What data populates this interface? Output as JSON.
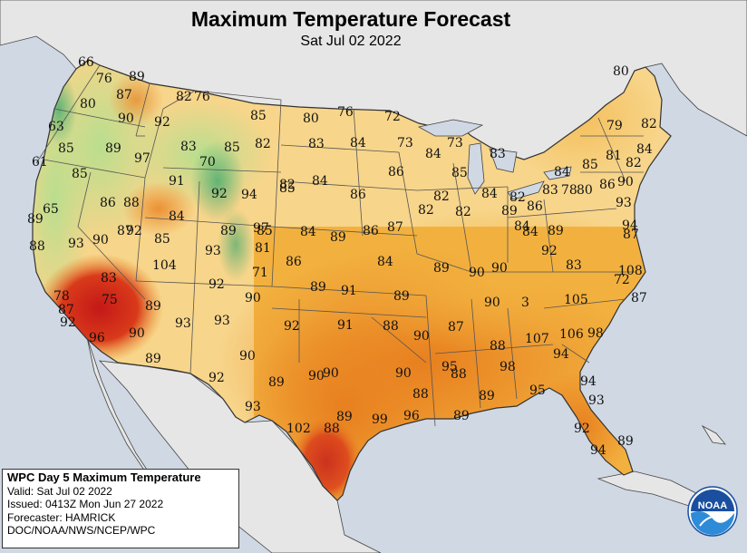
{
  "title": "Maximum Temperature Forecast",
  "subtitle": "Sat Jul 02 2022",
  "info_box": {
    "heading": "WPC Day 5 Maximum Temperature",
    "valid": "Valid: Sat Jul 02 2022",
    "issued": "Issued: 0413Z Mon Jun 27 2022",
    "forecaster": "Forecaster: HAMRICK",
    "agencies": "DOC/NOAA/NWS/NCEP/WPC"
  },
  "logo_text": "NOAA",
  "colors": {
    "ocean": "#cfd8e3",
    "land_outside": "#e6e6e6",
    "temp_60s": "#2ea36a",
    "temp_70s": "#b9de8e",
    "temp_80s": "#f7d58a",
    "temp_85_90": "#f2b13f",
    "temp_90s": "#e8801f",
    "temp_100s": "#c41818"
  },
  "temperatures": [
    {
      "value": "66"
    },
    {
      "value": "76"
    },
    {
      "value": "89"
    },
    {
      "value": "80"
    },
    {
      "value": "87"
    },
    {
      "value": "82"
    },
    {
      "value": "76"
    },
    {
      "value": "63"
    },
    {
      "value": "90"
    },
    {
      "value": "92"
    },
    {
      "value": "85"
    },
    {
      "value": "80"
    },
    {
      "value": "76"
    },
    {
      "value": "72"
    },
    {
      "value": "85"
    },
    {
      "value": "89"
    },
    {
      "value": "83"
    },
    {
      "value": "85"
    },
    {
      "value": "82"
    },
    {
      "value": "83"
    },
    {
      "value": "84"
    },
    {
      "value": "73"
    },
    {
      "value": "73"
    },
    {
      "value": "61"
    },
    {
      "value": "97"
    },
    {
      "value": "70"
    },
    {
      "value": "85"
    },
    {
      "value": "91"
    },
    {
      "value": "82"
    },
    {
      "value": "84"
    },
    {
      "value": "86"
    },
    {
      "value": "84"
    },
    {
      "value": "83"
    },
    {
      "value": "80"
    },
    {
      "value": "79"
    },
    {
      "value": "82"
    },
    {
      "value": "85"
    },
    {
      "value": "86"
    },
    {
      "value": "88"
    },
    {
      "value": "92"
    },
    {
      "value": "94"
    },
    {
      "value": "85"
    },
    {
      "value": "86"
    },
    {
      "value": "82"
    },
    {
      "value": "84"
    },
    {
      "value": "82"
    },
    {
      "value": "84"
    },
    {
      "value": "85"
    },
    {
      "value": "81"
    },
    {
      "value": "82"
    },
    {
      "value": "84"
    },
    {
      "value": "89"
    },
    {
      "value": "65"
    },
    {
      "value": "84"
    },
    {
      "value": "97"
    },
    {
      "value": "82"
    },
    {
      "value": "82"
    },
    {
      "value": "89"
    },
    {
      "value": "84"
    },
    {
      "value": "86"
    },
    {
      "value": "83"
    },
    {
      "value": "78"
    },
    {
      "value": "80"
    },
    {
      "value": "86"
    },
    {
      "value": "90"
    },
    {
      "value": "93"
    },
    {
      "value": "94"
    },
    {
      "value": "87"
    },
    {
      "value": "92"
    },
    {
      "value": "85"
    },
    {
      "value": "89"
    },
    {
      "value": "85"
    },
    {
      "value": "84"
    },
    {
      "value": "89"
    },
    {
      "value": "86"
    },
    {
      "value": "87"
    },
    {
      "value": "84"
    },
    {
      "value": "89"
    },
    {
      "value": "87"
    },
    {
      "value": "88"
    },
    {
      "value": "93"
    },
    {
      "value": "90"
    },
    {
      "value": "93"
    },
    {
      "value": "81"
    },
    {
      "value": "86"
    },
    {
      "value": "84"
    },
    {
      "value": "89"
    },
    {
      "value": "90"
    },
    {
      "value": "90"
    },
    {
      "value": "92"
    },
    {
      "value": "83"
    },
    {
      "value": "104"
    },
    {
      "value": "83"
    },
    {
      "value": "92"
    },
    {
      "value": "71"
    },
    {
      "value": "108"
    },
    {
      "value": "78"
    },
    {
      "value": "75"
    },
    {
      "value": "89"
    },
    {
      "value": "90"
    },
    {
      "value": "89"
    },
    {
      "value": "91"
    },
    {
      "value": "89"
    },
    {
      "value": "90"
    },
    {
      "value": "3"
    },
    {
      "value": "105"
    },
    {
      "value": "72"
    },
    {
      "value": "87"
    },
    {
      "value": "87"
    },
    {
      "value": "92"
    },
    {
      "value": "93"
    },
    {
      "value": "93"
    },
    {
      "value": "92"
    },
    {
      "value": "91"
    },
    {
      "value": "88"
    },
    {
      "value": "87"
    },
    {
      "value": "90"
    },
    {
      "value": "88"
    },
    {
      "value": "107"
    },
    {
      "value": "106"
    },
    {
      "value": "98"
    },
    {
      "value": "96"
    },
    {
      "value": "90"
    },
    {
      "value": "89"
    },
    {
      "value": "90"
    },
    {
      "value": "94"
    },
    {
      "value": "95"
    },
    {
      "value": "98"
    },
    {
      "value": "95"
    },
    {
      "value": "92"
    },
    {
      "value": "89"
    },
    {
      "value": "90"
    },
    {
      "value": "90"
    },
    {
      "value": "90"
    },
    {
      "value": "88"
    },
    {
      "value": "89"
    },
    {
      "value": "94"
    },
    {
      "value": "93"
    },
    {
      "value": "88"
    },
    {
      "value": "89"
    },
    {
      "value": "93"
    },
    {
      "value": "89"
    },
    {
      "value": "99"
    },
    {
      "value": "96"
    },
    {
      "value": "92"
    },
    {
      "value": "89"
    },
    {
      "value": "102"
    },
    {
      "value": "88"
    },
    {
      "value": "94"
    }
  ]
}
